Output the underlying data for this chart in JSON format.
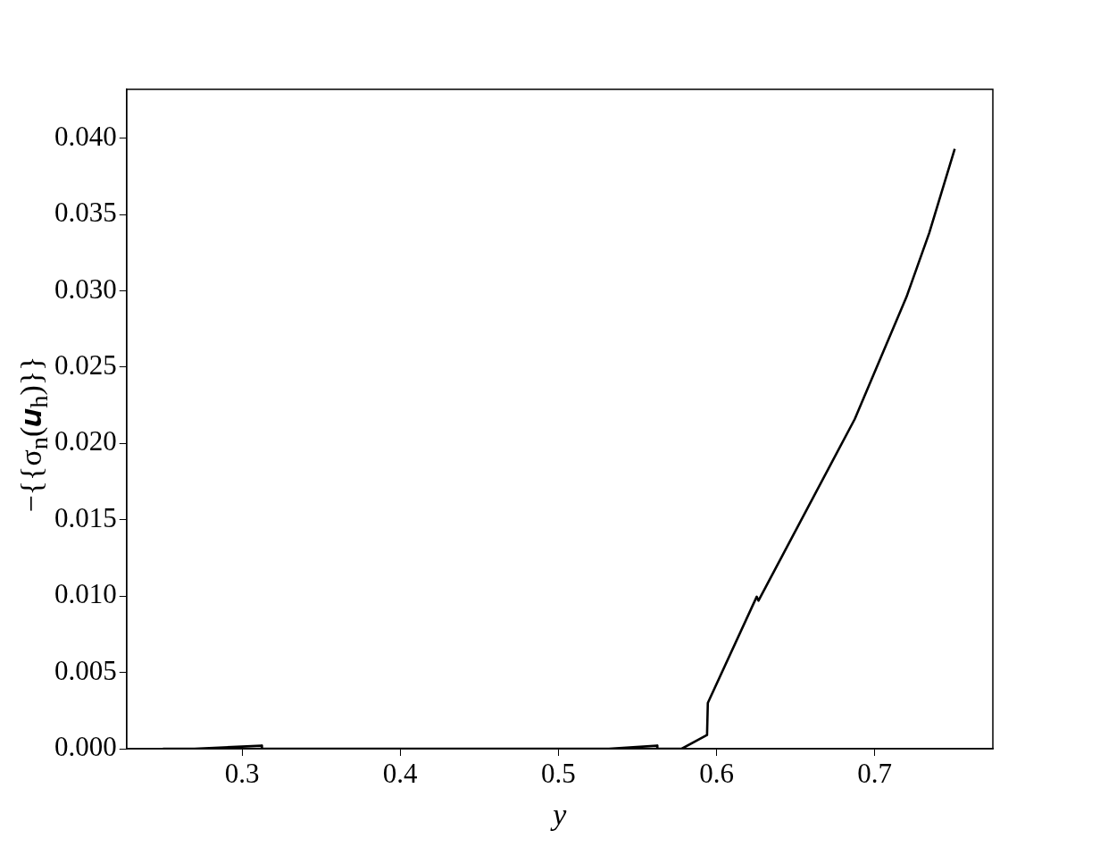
{
  "chart_data": {
    "type": "line",
    "xlabel": "y",
    "ylabel": "−{{σ$_{n}$(𝒖$_{h}$)}}",
    "x": [
      0.25,
      0.27,
      0.3125,
      0.3126,
      0.532,
      0.5625,
      0.5626,
      0.578,
      0.594,
      0.5945,
      0.6254,
      0.6265,
      0.6874,
      0.7201,
      0.7345,
      0.7506
    ],
    "series": [
      {
        "color": "#000000",
        "values": [
          0,
          0,
          0.0002,
          0,
          0,
          0.0002,
          0,
          0,
          0.0009,
          0.003,
          0.00996,
          0.0097,
          0.0216,
          0.0296,
          0.0338,
          0.0393
        ]
      }
    ],
    "xlim": [
      0.227,
      0.7747
    ],
    "ylim": [
      0,
      0.0432
    ],
    "xticks": [
      0.3,
      0.4,
      0.5,
      0.6,
      0.7
    ],
    "yticks": [
      {
        "value": 0,
        "label": "0.000"
      },
      {
        "value": 0.005,
        "label": "0.005"
      },
      {
        "value": 0.01,
        "label": "0.010"
      },
      {
        "value": 0.015,
        "label": "0.015"
      },
      {
        "value": 0.02,
        "label": "0.020"
      },
      {
        "value": 0.025,
        "label": "0.025"
      },
      {
        "value": 0.03,
        "label": "0.030"
      },
      {
        "value": 0.035,
        "label": "0.035"
      },
      {
        "value": 0.04,
        "label": "0.040"
      }
    ],
    "grid": false,
    "legend": false,
    "marker": "none",
    "line_style": "solid"
  }
}
